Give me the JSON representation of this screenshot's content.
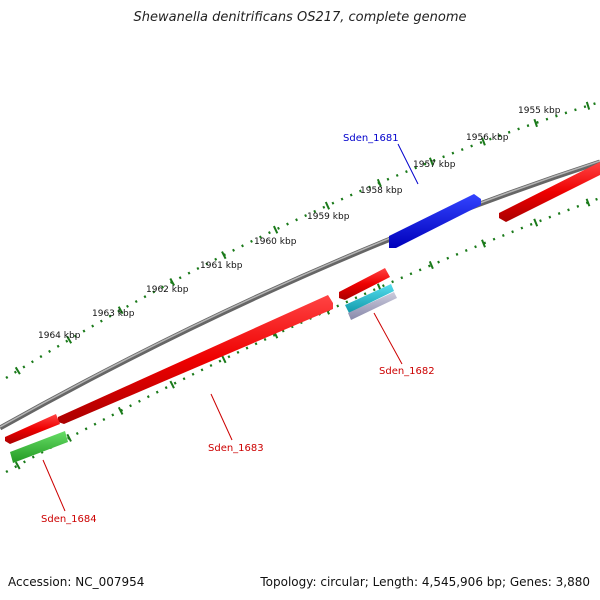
{
  "title": "Shewanella denitrificans OS217, complete genome",
  "footer": {
    "accession": "Accession: NC_007954",
    "summary": "Topology: circular; Length: 4,545,906 bp; Genes: 3,880"
  },
  "ticks": [
    {
      "label": "1955 kbp"
    },
    {
      "label": "1956 kbp"
    },
    {
      "label": "1957 kbp"
    },
    {
      "label": "1958 kbp"
    },
    {
      "label": "1959 kbp"
    },
    {
      "label": "1960 kbp"
    },
    {
      "label": "1961 kbp"
    },
    {
      "label": "1962 kbp"
    },
    {
      "label": "1963 kbp"
    },
    {
      "label": "1964 kbp"
    }
  ],
  "genes": [
    {
      "name": "Sden_1681",
      "color": "#0000cc"
    },
    {
      "name": "Sden_1682",
      "color": "#cc0000"
    },
    {
      "name": "Sden_1683",
      "color": "#cc0000"
    },
    {
      "name": "Sden_1684",
      "color": "#cc0000"
    }
  ],
  "colors": {
    "backbone": "#777777",
    "ticks": "#1a7a1a",
    "forward_gene": "#0000dd",
    "reverse_gene": "#ee0000",
    "rna_gene": "#22aacc",
    "other_gene": "#33bb33"
  }
}
